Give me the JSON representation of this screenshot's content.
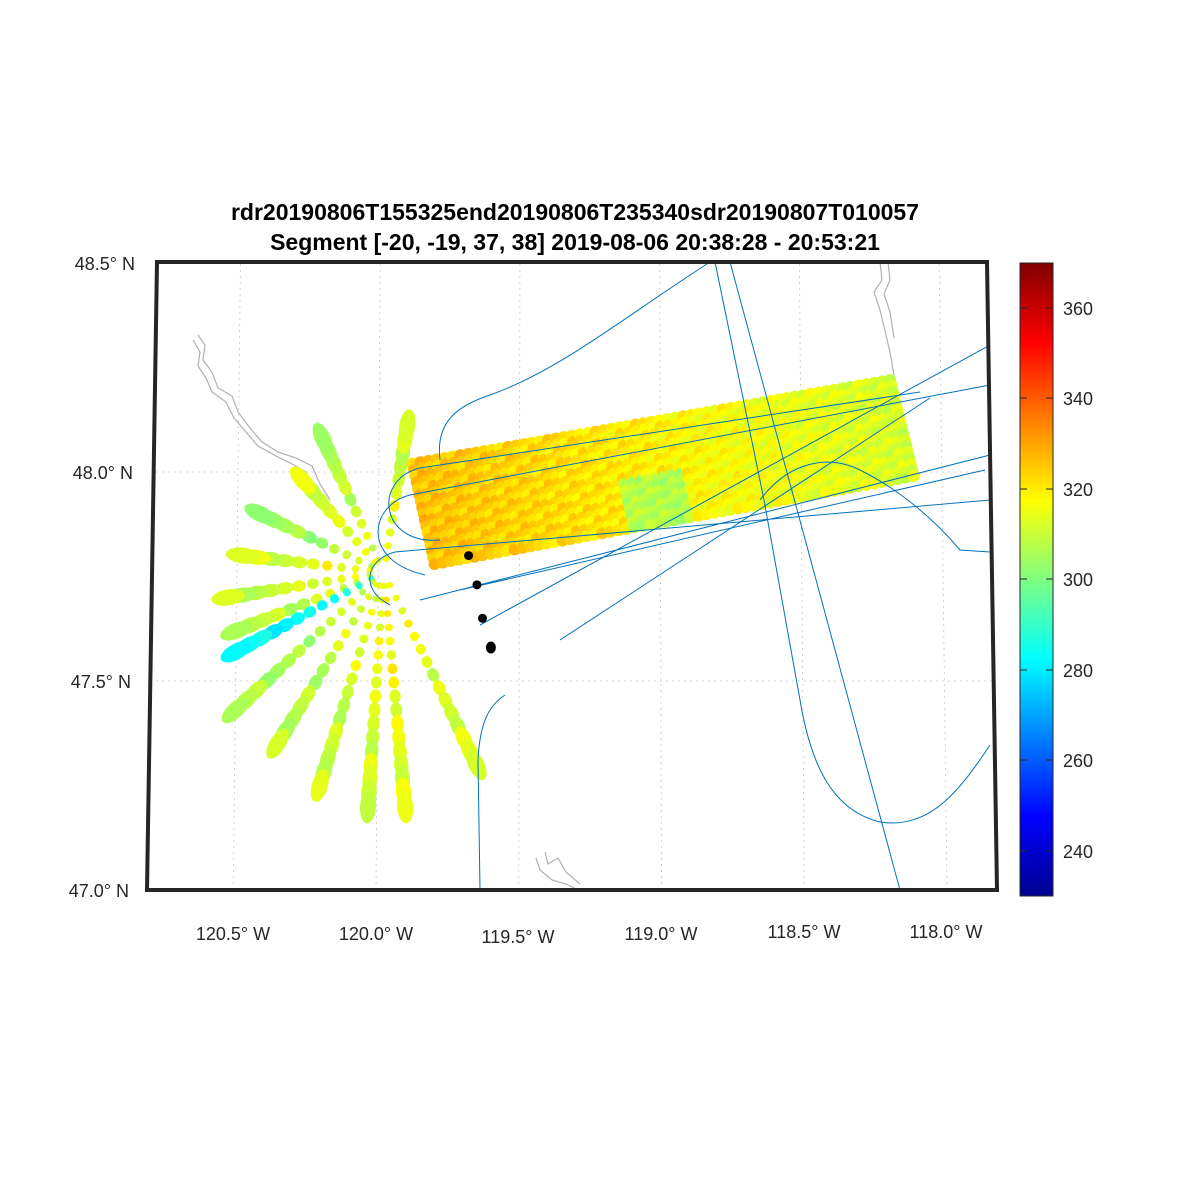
{
  "title": {
    "line1": "rdr20190806T155325end20190806T235340sdr20190807T010057",
    "line2": "Segment [-20, -19, 37, 38] 2019-08-06 20:38:28 - 20:53:21"
  },
  "map": {
    "lat_labels": [
      {
        "lat": 48.5,
        "label": "48.5° N"
      },
      {
        "lat": 48.0,
        "label": "48.0° N"
      },
      {
        "lat": 47.5,
        "label": "47.5° N"
      },
      {
        "lat": 47.0,
        "label": "47.0° N"
      }
    ],
    "lon_labels": [
      {
        "lon": -120.5,
        "label": "120.5° W"
      },
      {
        "lon": -120.0,
        "label": "120.0° W"
      },
      {
        "lon": -119.5,
        "label": "119.5° W"
      },
      {
        "lon": -119.0,
        "label": "119.0° W"
      },
      {
        "lon": -118.5,
        "label": "118.5° W"
      },
      {
        "lon": -118.0,
        "label": "118.0° W"
      }
    ],
    "lat_range": [
      47.0,
      48.5
    ],
    "lon_range": [
      -120.8,
      -117.9
    ],
    "grid": true,
    "colors": {
      "flight_track": "#0072BD",
      "coastline": "#b0b0b0",
      "frame": "#262626",
      "marker": "#000000"
    }
  },
  "colorbar": {
    "ticks": [
      "360",
      "340",
      "320",
      "300",
      "280",
      "260",
      "240"
    ],
    "range": [
      230,
      370
    ],
    "colormap": "jet"
  },
  "chart_data": {
    "type": "scatter",
    "title": "rdr20190806T155325end20190806T235340sdr20190807T010057 / Segment [-20, -19, 37, 38] 2019-08-06 20:38:28 - 20:53:21",
    "xlabel": "",
    "ylabel": "",
    "xlim": [
      -120.8,
      -117.9
    ],
    "ylim": [
      47.0,
      48.5
    ],
    "clim": [
      230,
      370
    ],
    "fan_origin": {
      "lon": -119.98,
      "lat": 47.76
    },
    "spokes": [
      {
        "end_lon": -119.9,
        "end_lat": 48.11,
        "value": 311
      },
      {
        "end_lon": -120.2,
        "end_lat": 48.08,
        "value": 308
      },
      {
        "end_lon": -120.27,
        "end_lat": 47.98,
        "value": 312
      },
      {
        "end_lon": -120.42,
        "end_lat": 47.9,
        "value": 305
      },
      {
        "end_lon": -120.48,
        "end_lat": 47.8,
        "value": 312
      },
      {
        "end_lon": -120.53,
        "end_lat": 47.7,
        "value": 310
      },
      {
        "end_lon": -120.5,
        "end_lat": 47.62,
        "value": 308
      },
      {
        "end_lon": -120.5,
        "end_lat": 47.57,
        "value": 282
      },
      {
        "end_lon": -120.5,
        "end_lat": 47.43,
        "value": 306
      },
      {
        "end_lon": -120.35,
        "end_lat": 47.35,
        "value": 308
      },
      {
        "end_lon": -120.2,
        "end_lat": 47.25,
        "value": 310
      },
      {
        "end_lon": -120.03,
        "end_lat": 47.2,
        "value": 312
      },
      {
        "end_lon": -119.9,
        "end_lat": 47.2,
        "value": 314
      },
      {
        "end_lon": -119.65,
        "end_lat": 47.3,
        "value": 312
      }
    ],
    "swath": {
      "corners": [
        {
          "lon": -119.88,
          "lat": 48.02
        },
        {
          "lon": -118.18,
          "lat": 48.22
        },
        {
          "lon": -118.1,
          "lat": 47.99
        },
        {
          "lon": -119.8,
          "lat": 47.78
        }
      ],
      "value_west": 326,
      "value_east": 312
    },
    "markers": [
      {
        "lon": -119.68,
        "lat": 47.8
      },
      {
        "lon": -119.65,
        "lat": 47.73
      },
      {
        "lon": -119.63,
        "lat": 47.65
      },
      {
        "lon": -119.6,
        "lat": 47.58
      }
    ]
  }
}
